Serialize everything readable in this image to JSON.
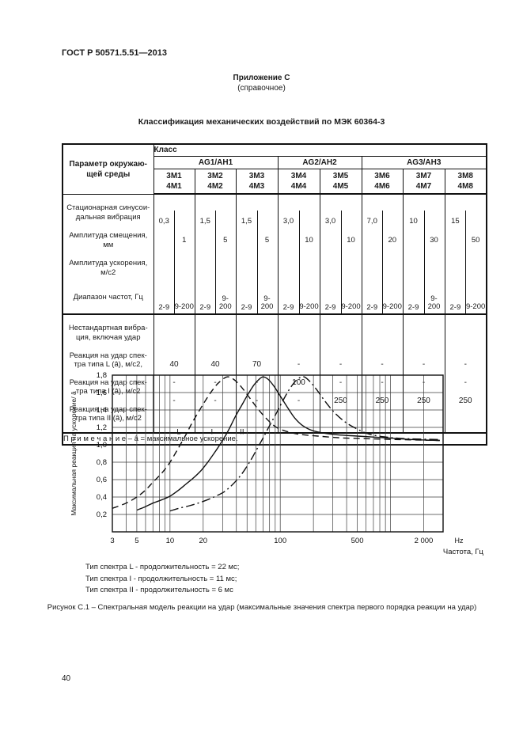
{
  "page": {
    "doc_number": "ГОСТ Р 50571.5.51—2013",
    "appendix": "Приложение С",
    "appendix_note": "(справочное)",
    "title": "Классификация механических воздействий по МЭК 60364-3",
    "page_number": "40"
  },
  "table": {
    "param_header": "Параметр окружаю-\nщей среды",
    "class_label": "Класс",
    "groups": [
      "AG1/AH1",
      "AG2/AH2",
      "AG3/AH3"
    ],
    "classes": [
      "3M1\n4M1",
      "3M2\n4M2",
      "3M3\n4M3",
      "3M4\n4M4",
      "3M5\n4M5",
      "3M6\n4M6",
      "3M7\n4M7",
      "3M8\n4M8"
    ],
    "block1": {
      "row_labels": [
        "Стационарная синусои-\nдальная вибрация",
        "Амплитуда смещения,\nмм",
        "Амплитуда ускорения,\nм/с2",
        "Диапазон частот, Гц"
      ],
      "columns": [
        {
          "displacement": "0,3",
          "acceleration": "1",
          "freq_low": "2-9",
          "freq_high": "9-200"
        },
        {
          "displacement": "1,5",
          "acceleration": "5",
          "freq_low": "2-9",
          "freq_high": "9-\n200"
        },
        {
          "displacement": "1,5",
          "acceleration": "5",
          "freq_low": "2-9",
          "freq_high": "9-\n200"
        },
        {
          "displacement": "3,0",
          "acceleration": "10",
          "freq_low": "2-9",
          "freq_high": "9-200"
        },
        {
          "displacement": "3,0",
          "acceleration": "10",
          "freq_low": "2-9",
          "freq_high": "9-200"
        },
        {
          "displacement": "7,0",
          "acceleration": "20",
          "freq_low": "2-9",
          "freq_high": "9-200"
        },
        {
          "displacement": "10",
          "acceleration": "30",
          "freq_low": "2-9",
          "freq_high": "9-\n200"
        },
        {
          "displacement": "15",
          "acceleration": "50",
          "freq_low": "2-9",
          "freq_high": "9-200"
        }
      ]
    },
    "block2": {
      "row_labels": [
        "Нестандартная вибра-\nция, включая удар",
        "Реакция на удар спек-\nтра типа L (â), м/с2,",
        "Реакция на удар спек-\nтра типа I (â), м/с2",
        "Реакция на удар спек-\nтра типа II (â), м/с2"
      ],
      "columns": [
        {
          "L": "40",
          "I": "-",
          "II": "-"
        },
        {
          "L": "40",
          "I": "-",
          "II": "-"
        },
        {
          "L": "70",
          "I": "-",
          "II": "-"
        },
        {
          "L": "-",
          "I": "100",
          "II": "-"
        },
        {
          "L": "-",
          "I": "-",
          "II": "250"
        },
        {
          "L": "-",
          "I": "-",
          "II": "250"
        },
        {
          "L": "-",
          "I": "-",
          "II": "250"
        },
        {
          "L": "-",
          "I": "-",
          "II": "250"
        }
      ]
    },
    "note": "П р и м е ч а н и е – â = максимальное ускорение."
  },
  "chart_data": {
    "type": "line",
    "title": "",
    "xlabel": "Частота, Гц",
    "x_unit": "Hz",
    "ylabel": "Максимальная реакция на ускорение/ â",
    "x_scale": "log",
    "xlim": [
      3,
      3000
    ],
    "ylim": [
      0,
      1.8
    ],
    "grid": true,
    "legend_position": "inline-labels",
    "x_ticks": [
      {
        "v": 3,
        "label": "3"
      },
      {
        "v": 5,
        "label": "5"
      },
      {
        "v": 10,
        "label": "10"
      },
      {
        "v": 20,
        "label": "20"
      },
      {
        "v": 100,
        "label": "100"
      },
      {
        "v": 500,
        "label": "500"
      },
      {
        "v": 2000,
        "label": "2 000"
      }
    ],
    "y_ticks": [
      {
        "v": 0.2,
        "label": "0,2"
      },
      {
        "v": 0.4,
        "label": "0,4"
      },
      {
        "v": 0.6,
        "label": "0,6"
      },
      {
        "v": 0.8,
        "label": "0,8"
      },
      {
        "v": 1.0,
        "label": "1,0"
      },
      {
        "v": 1.2,
        "label": "1,2"
      },
      {
        "v": 1.4,
        "label": "1,4"
      },
      {
        "v": 1.6,
        "label": "1,6"
      },
      {
        "v": 1.8,
        "label": "1,8"
      }
    ],
    "series": [
      {
        "name": "L",
        "dash": "dashed",
        "label_pos": [
          12,
          1.15
        ],
        "points": [
          [
            3,
            0.27
          ],
          [
            4,
            0.33
          ],
          [
            5,
            0.4
          ],
          [
            6,
            0.48
          ],
          [
            7,
            0.57
          ],
          [
            8.5,
            0.68
          ],
          [
            10,
            0.8
          ],
          [
            12,
            0.97
          ],
          [
            14,
            1.12
          ],
          [
            16,
            1.26
          ],
          [
            19,
            1.42
          ],
          [
            22,
            1.55
          ],
          [
            25,
            1.65
          ],
          [
            28,
            1.72
          ],
          [
            33,
            1.78
          ],
          [
            38,
            1.75
          ],
          [
            44,
            1.67
          ],
          [
            52,
            1.55
          ],
          [
            62,
            1.42
          ],
          [
            75,
            1.3
          ],
          [
            90,
            1.21
          ],
          [
            110,
            1.16
          ],
          [
            150,
            1.12
          ],
          [
            220,
            1.1
          ],
          [
            350,
            1.08
          ],
          [
            600,
            1.07
          ],
          [
            1200,
            1.06
          ],
          [
            2800,
            1.05
          ]
        ]
      },
      {
        "name": "I",
        "dash": "solid",
        "label_pos": [
          24,
          1.15
        ],
        "points": [
          [
            5,
            0.25
          ],
          [
            6,
            0.29
          ],
          [
            7,
            0.33
          ],
          [
            8.5,
            0.37
          ],
          [
            10,
            0.41
          ],
          [
            12,
            0.48
          ],
          [
            14,
            0.55
          ],
          [
            16,
            0.61
          ],
          [
            19,
            0.7
          ],
          [
            22,
            0.8
          ],
          [
            26,
            0.93
          ],
          [
            30,
            1.05
          ],
          [
            34,
            1.17
          ],
          [
            39,
            1.32
          ],
          [
            45,
            1.46
          ],
          [
            51,
            1.58
          ],
          [
            58,
            1.69
          ],
          [
            64,
            1.75
          ],
          [
            70,
            1.78
          ],
          [
            78,
            1.75
          ],
          [
            88,
            1.67
          ],
          [
            100,
            1.56
          ],
          [
            115,
            1.44
          ],
          [
            135,
            1.31
          ],
          [
            160,
            1.22
          ],
          [
            200,
            1.16
          ],
          [
            300,
            1.12
          ],
          [
            500,
            1.1
          ],
          [
            900,
            1.08
          ],
          [
            1600,
            1.06
          ],
          [
            2800,
            1.05
          ]
        ]
      },
      {
        "name": "II",
        "dash": "dashdot",
        "label_pos": [
          45,
          1.15
        ],
        "points": [
          [
            10,
            0.24
          ],
          [
            12,
            0.27
          ],
          [
            15,
            0.3
          ],
          [
            18,
            0.33
          ],
          [
            22,
            0.37
          ],
          [
            26,
            0.41
          ],
          [
            31,
            0.46
          ],
          [
            36,
            0.53
          ],
          [
            42,
            0.62
          ],
          [
            48,
            0.72
          ],
          [
            55,
            0.84
          ],
          [
            62,
            0.96
          ],
          [
            70,
            1.08
          ],
          [
            80,
            1.22
          ],
          [
            92,
            1.36
          ],
          [
            105,
            1.5
          ],
          [
            120,
            1.63
          ],
          [
            135,
            1.72
          ],
          [
            150,
            1.77
          ],
          [
            165,
            1.78
          ],
          [
            185,
            1.73
          ],
          [
            215,
            1.63
          ],
          [
            255,
            1.5
          ],
          [
            310,
            1.37
          ],
          [
            390,
            1.26
          ],
          [
            500,
            1.18
          ],
          [
            650,
            1.12
          ],
          [
            900,
            1.09
          ],
          [
            1400,
            1.07
          ],
          [
            2800,
            1.06
          ]
        ]
      }
    ]
  },
  "figure": {
    "legend_lines": [
      "Тип спектра L - продолжительность = 22 мс;",
      "Тип спектра I - продолжительность = 11 мс;",
      "Тип спектра II - продолжительность = 6 мс"
    ],
    "caption": "Рисунок С.1 – Спектральная модель реакции на удар (максимальные значения спектра первого порядка реакции на удар)"
  }
}
